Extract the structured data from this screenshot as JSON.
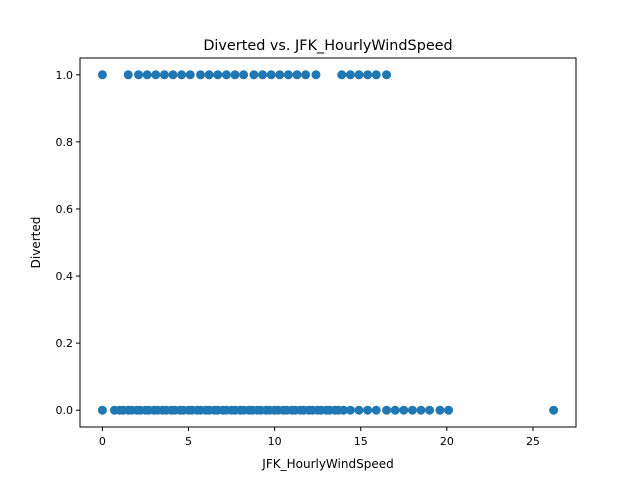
{
  "chart_data": {
    "type": "scatter",
    "title": "Diverted vs. JFK_HourlyWindSpeed",
    "xlabel": "JFK_HourlyWindSpeed",
    "ylabel": "Diverted",
    "xlim": [
      -1.3,
      27.5
    ],
    "ylim": [
      -0.05,
      1.05
    ],
    "x_ticks": [
      0,
      5,
      10,
      15,
      20,
      25
    ],
    "x_tick_labels": [
      "0",
      "5",
      "10",
      "15",
      "20",
      "25"
    ],
    "y_ticks": [
      0.0,
      0.2,
      0.4,
      0.6,
      0.8,
      1.0
    ],
    "y_tick_labels": [
      "0.0",
      "0.2",
      "0.4",
      "0.6",
      "0.8",
      "1.0"
    ],
    "grid": false,
    "marker_color": "#1f77b4",
    "points_y1": [
      0.0,
      1.5,
      2.1,
      2.6,
      3.1,
      3.6,
      4.1,
      4.6,
      5.1,
      5.7,
      6.2,
      6.7,
      7.2,
      7.7,
      8.2,
      8.8,
      9.3,
      9.8,
      10.3,
      10.8,
      11.3,
      11.8,
      12.4,
      13.9,
      14.4,
      14.9,
      15.4,
      15.9,
      16.5
    ],
    "points_y0": [
      0.0,
      0.7,
      1.0,
      1.2,
      1.5,
      1.7,
      2.0,
      2.2,
      2.5,
      2.7,
      3.0,
      3.2,
      3.5,
      3.7,
      4.0,
      4.2,
      4.5,
      4.7,
      5.0,
      5.2,
      5.5,
      5.7,
      6.0,
      6.2,
      6.5,
      6.7,
      7.0,
      7.2,
      7.5,
      7.7,
      8.0,
      8.2,
      8.5,
      8.7,
      9.0,
      9.2,
      9.5,
      9.7,
      10.0,
      10.2,
      10.5,
      10.7,
      11.0,
      11.2,
      11.5,
      11.7,
      12.0,
      12.2,
      12.5,
      12.7,
      13.0,
      13.2,
      13.5,
      13.7,
      14.0,
      14.4,
      14.9,
      15.4,
      15.9,
      16.5,
      17.0,
      17.5,
      18.0,
      18.5,
      19.0,
      19.6,
      20.1,
      26.2
    ]
  }
}
